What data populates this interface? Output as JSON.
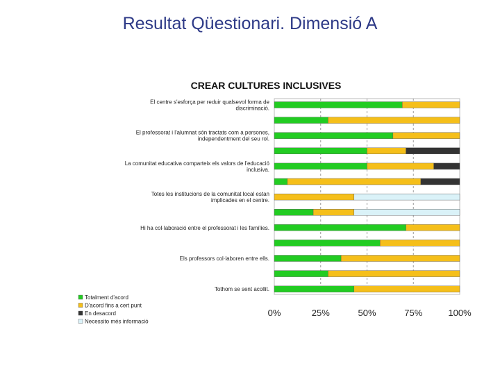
{
  "slide": {
    "title": "Resultat Qüestionari. Dimensió A"
  },
  "chart_data": {
    "type": "bar",
    "orientation": "horizontal",
    "stacked": true,
    "title": "CREAR CULTURES INCLUSIVES",
    "xlim": [
      0,
      100
    ],
    "x_ticks": [
      "0%",
      "25%",
      "50%",
      "75%",
      "100%"
    ],
    "grid": "vertical dashed",
    "legend_position": "bottom-left",
    "categories": [
      "El centre s'esforça per reduir qualsevol forma de discriminació.",
      "",
      "El professorat i l'alumnat són tractats com a persones, independentment del seu rol.",
      "",
      "La comunitat educativa comparteix els valors de l'educació inclusiva.",
      "",
      "Totes les institucions de la comunitat local estan implicades en el centre.",
      "",
      "Hi ha col·laboració entre el professorat i les famílies.",
      "",
      "Els professors col·laboren entre ells.",
      "",
      "Tothom se sent acollit."
    ],
    "series": [
      {
        "name": "Totalment d'acord",
        "color": "#22cc22",
        "values": [
          69,
          29,
          64,
          50,
          50,
          7,
          0,
          21,
          71,
          57,
          36,
          29,
          43
        ]
      },
      {
        "name": "D'acord fins a cert punt",
        "color": "#f5bf1a",
        "values": [
          31,
          71,
          36,
          21,
          36,
          72,
          43,
          22,
          29,
          43,
          64,
          71,
          57
        ]
      },
      {
        "name": "En desacord",
        "color": "#333333",
        "values": [
          0,
          0,
          0,
          29,
          14,
          21,
          0,
          0,
          0,
          0,
          0,
          0,
          0
        ]
      },
      {
        "name": "Necessito més informació",
        "color": "#daf2f8",
        "values": [
          0,
          0,
          0,
          0,
          0,
          0,
          57,
          57,
          0,
          0,
          0,
          0,
          0
        ]
      }
    ]
  }
}
